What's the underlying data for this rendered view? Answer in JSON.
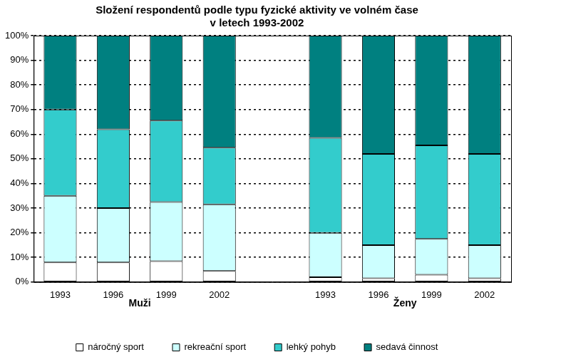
{
  "chart_data": {
    "type": "bar",
    "title": [
      "Složení respondentů podle typu fyzické aktivity ve volném čase",
      "v letech 1993-2002"
    ],
    "categories": [
      "1993",
      "1996",
      "1999",
      "2002",
      null,
      "1993",
      "1996",
      "1999",
      "2002"
    ],
    "group_labels": [
      "Muži",
      "Ženy"
    ],
    "stacked": true,
    "series": [
      {
        "name": "náročný sport",
        "color": "#ffffff",
        "values": [
          8,
          8,
          8.5,
          4.5,
          null,
          2,
          1.5,
          3,
          1.5
        ]
      },
      {
        "name": "rekreační sport",
        "color": "#ccffff",
        "values": [
          27,
          22,
          24,
          27,
          null,
          18,
          13.5,
          14.5,
          13.5
        ]
      },
      {
        "name": "lehký pohyb",
        "color": "#33cccc",
        "values": [
          35,
          32,
          33,
          23,
          null,
          38.5,
          37,
          38,
          37
        ]
      },
      {
        "name": "sedavá činnost",
        "color": "#008080",
        "values": [
          30,
          38,
          34.5,
          45.5,
          null,
          41.5,
          48,
          44.5,
          48
        ]
      }
    ],
    "ylim": [
      0,
      100
    ],
    "yticks": [
      {
        "value": 0,
        "label": "0%"
      },
      {
        "value": 10,
        "label": "10%"
      },
      {
        "value": 20,
        "label": "20%"
      },
      {
        "value": 30,
        "label": "30%"
      },
      {
        "value": 40,
        "label": "40%"
      },
      {
        "value": 50,
        "label": "50%"
      },
      {
        "value": 60,
        "label": "60%"
      },
      {
        "value": 70,
        "label": "70%"
      },
      {
        "value": 80,
        "label": "80%"
      },
      {
        "value": 90,
        "label": "90%"
      },
      {
        "value": 100,
        "label": "100%"
      }
    ],
    "grid": true,
    "legend": "bottom"
  }
}
